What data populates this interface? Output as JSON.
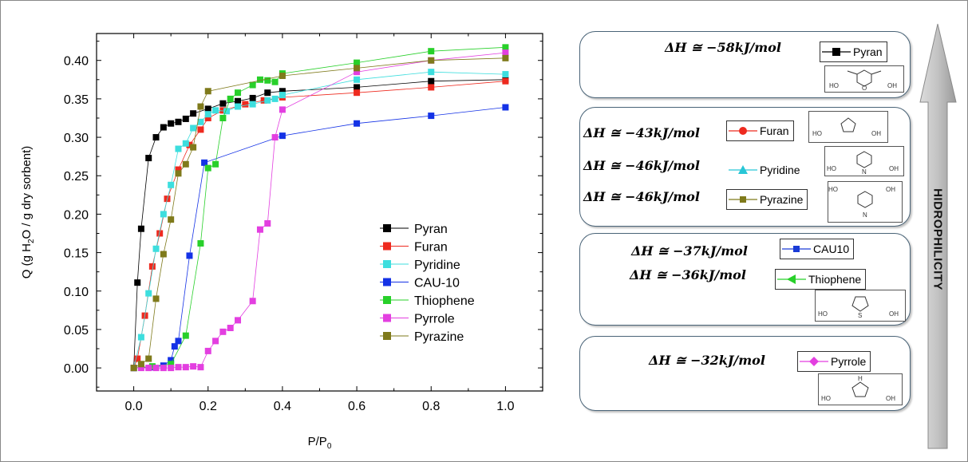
{
  "chart_data": {
    "type": "scatter",
    "xlabel": "P/P",
    "xlabel_sub": "0",
    "ylabel_pre": "Q (g H",
    "ylabel_sub": "2",
    "ylabel_post": "O / g dry sorbent)",
    "xlim": [
      -0.1,
      1.1
    ],
    "ylim": [
      -0.03,
      0.435
    ],
    "xticks": [
      "0.0",
      "0.2",
      "0.4",
      "0.6",
      "0.8",
      "1.0"
    ],
    "xtick_values": [
      0,
      0.2,
      0.4,
      0.6,
      0.8,
      1.0
    ],
    "yticks": [
      "0.00",
      "0.05",
      "0.10",
      "0.15",
      "0.20",
      "0.25",
      "0.30",
      "0.35",
      "0.40"
    ],
    "ytick_values": [
      0,
      0.05,
      0.1,
      0.15,
      0.2,
      0.25,
      0.3,
      0.35,
      0.4
    ],
    "legend_position": "lower-right",
    "series": [
      {
        "name": "Pyran",
        "color": "#000000",
        "points": [
          [
            0.0,
            0.0
          ],
          [
            0.01,
            0.111
          ],
          [
            0.02,
            0.181
          ],
          [
            0.04,
            0.273
          ],
          [
            0.06,
            0.3
          ],
          [
            0.08,
            0.313
          ],
          [
            0.1,
            0.318
          ],
          [
            0.12,
            0.32
          ],
          [
            0.14,
            0.324
          ],
          [
            0.16,
            0.331
          ],
          [
            0.2,
            0.337
          ],
          [
            0.24,
            0.344
          ],
          [
            0.28,
            0.347
          ],
          [
            0.32,
            0.351
          ],
          [
            0.36,
            0.358
          ],
          [
            0.4,
            0.36
          ],
          [
            0.6,
            0.365
          ],
          [
            0.8,
            0.373
          ],
          [
            1.0,
            0.375
          ]
        ]
      },
      {
        "name": "Furan",
        "color": "#ee2a1f",
        "points": [
          [
            0.0,
            0.0
          ],
          [
            0.01,
            0.012
          ],
          [
            0.03,
            0.068
          ],
          [
            0.05,
            0.132
          ],
          [
            0.07,
            0.175
          ],
          [
            0.09,
            0.22
          ],
          [
            0.12,
            0.258
          ],
          [
            0.15,
            0.29
          ],
          [
            0.18,
            0.31
          ],
          [
            0.2,
            0.325
          ],
          [
            0.24,
            0.335
          ],
          [
            0.3,
            0.343
          ],
          [
            0.35,
            0.348
          ],
          [
            0.4,
            0.352
          ],
          [
            0.6,
            0.358
          ],
          [
            0.8,
            0.365
          ],
          [
            1.0,
            0.373
          ]
        ]
      },
      {
        "name": "Pyridine",
        "color": "#3ddede",
        "points": [
          [
            0.0,
            0.0
          ],
          [
            0.02,
            0.04
          ],
          [
            0.04,
            0.097
          ],
          [
            0.06,
            0.155
          ],
          [
            0.08,
            0.2
          ],
          [
            0.1,
            0.238
          ],
          [
            0.12,
            0.285
          ],
          [
            0.14,
            0.292
          ],
          [
            0.16,
            0.312
          ],
          [
            0.18,
            0.32
          ],
          [
            0.2,
            0.33
          ],
          [
            0.22,
            0.335
          ],
          [
            0.25,
            0.334
          ],
          [
            0.28,
            0.34
          ],
          [
            0.32,
            0.343
          ],
          [
            0.36,
            0.348
          ],
          [
            0.38,
            0.35
          ],
          [
            0.4,
            0.355
          ],
          [
            0.6,
            0.375
          ],
          [
            0.8,
            0.385
          ],
          [
            1.0,
            0.382
          ]
        ]
      },
      {
        "name": "CAU-10",
        "color": "#1432e6",
        "points": [
          [
            0.0,
            0.0
          ],
          [
            0.05,
            0.001
          ],
          [
            0.08,
            0.003
          ],
          [
            0.1,
            0.01
          ],
          [
            0.11,
            0.028
          ],
          [
            0.12,
            0.035
          ],
          [
            0.15,
            0.146
          ],
          [
            0.19,
            0.267
          ],
          [
            0.4,
            0.302
          ],
          [
            0.6,
            0.318
          ],
          [
            0.8,
            0.328
          ],
          [
            1.0,
            0.339
          ]
        ]
      },
      {
        "name": "Thiophene",
        "color": "#28d02a",
        "points": [
          [
            0.0,
            0.0
          ],
          [
            0.05,
            0.002
          ],
          [
            0.1,
            0.005
          ],
          [
            0.14,
            0.042
          ],
          [
            0.18,
            0.162
          ],
          [
            0.2,
            0.26
          ],
          [
            0.22,
            0.265
          ],
          [
            0.24,
            0.325
          ],
          [
            0.26,
            0.35
          ],
          [
            0.28,
            0.358
          ],
          [
            0.32,
            0.368
          ],
          [
            0.34,
            0.375
          ],
          [
            0.36,
            0.374
          ],
          [
            0.38,
            0.372
          ],
          [
            0.4,
            0.383
          ],
          [
            0.6,
            0.397
          ],
          [
            0.8,
            0.412
          ],
          [
            1.0,
            0.417
          ]
        ]
      },
      {
        "name": "Pyrrole",
        "color": "#e33fe0",
        "points": [
          [
            0.0,
            0.0
          ],
          [
            0.02,
            0.0
          ],
          [
            0.04,
            0.0
          ],
          [
            0.06,
            0.0
          ],
          [
            0.08,
            0.0
          ],
          [
            0.1,
            0.0
          ],
          [
            0.12,
            0.001
          ],
          [
            0.14,
            0.001
          ],
          [
            0.16,
            0.002
          ],
          [
            0.18,
            0.001
          ],
          [
            0.2,
            0.022
          ],
          [
            0.22,
            0.035
          ],
          [
            0.24,
            0.047
          ],
          [
            0.26,
            0.052
          ],
          [
            0.28,
            0.062
          ],
          [
            0.32,
            0.087
          ],
          [
            0.34,
            0.18
          ],
          [
            0.36,
            0.188
          ],
          [
            0.38,
            0.3
          ],
          [
            0.4,
            0.336
          ],
          [
            0.6,
            0.385
          ],
          [
            0.8,
            0.4
          ],
          [
            1.0,
            0.41
          ]
        ]
      },
      {
        "name": "Pyrazine",
        "color": "#7f7a1b",
        "points": [
          [
            0.0,
            0.0
          ],
          [
            0.02,
            0.005
          ],
          [
            0.04,
            0.012
          ],
          [
            0.06,
            0.09
          ],
          [
            0.08,
            0.148
          ],
          [
            0.1,
            0.193
          ],
          [
            0.12,
            0.253
          ],
          [
            0.14,
            0.265
          ],
          [
            0.16,
            0.287
          ],
          [
            0.18,
            0.34
          ],
          [
            0.2,
            0.36
          ],
          [
            0.4,
            0.38
          ],
          [
            0.6,
            0.39
          ],
          [
            0.8,
            0.4
          ],
          [
            1.0,
            0.403
          ]
        ]
      }
    ]
  },
  "panels": {
    "p1": {
      "dh": "ΔH ≅ −58kJ/mol",
      "dh_color": "#000000",
      "legend": "Pyran",
      "marker_color": "#000000"
    },
    "p2": [
      {
        "dh": "ΔH ≅ −43kJ/mol",
        "dh_color": "#ee2a1f",
        "legend": "Furan",
        "marker_color": "#ee2a1f"
      },
      {
        "dh": "ΔH ≅ −46kJ/mol",
        "dh_color": "#28c6d6",
        "legend": "Pyridine",
        "marker_color": "#28c6d6"
      },
      {
        "dh": "ΔH ≅ −46kJ/mol",
        "dh_color": "#7f7a1b",
        "legend": "Pyrazine",
        "marker_color": "#7f7a1b"
      }
    ],
    "p3": [
      {
        "dh": "ΔH ≅ −37kJ/mol",
        "dh_color": "#1a3bd6",
        "legend": "CAU10",
        "marker_color": "#1a3bd6"
      },
      {
        "dh": "ΔH ≅ −36kJ/mol",
        "dh_color": "#8fd26e",
        "legend": "Thiophene",
        "marker_color": "#28d02a"
      }
    ],
    "p4": {
      "dh": "ΔH ≅ −32kJ/mol",
      "dh_color": "#e33fe0",
      "legend": "Pyrrole",
      "marker_color": "#e33fe0"
    }
  },
  "molecules": {
    "OH": "OH",
    "HO": "HO",
    "O": "O",
    "N": "N",
    "S": "S",
    "H": "H"
  },
  "arrow_label": "HIDROPHILICITY"
}
